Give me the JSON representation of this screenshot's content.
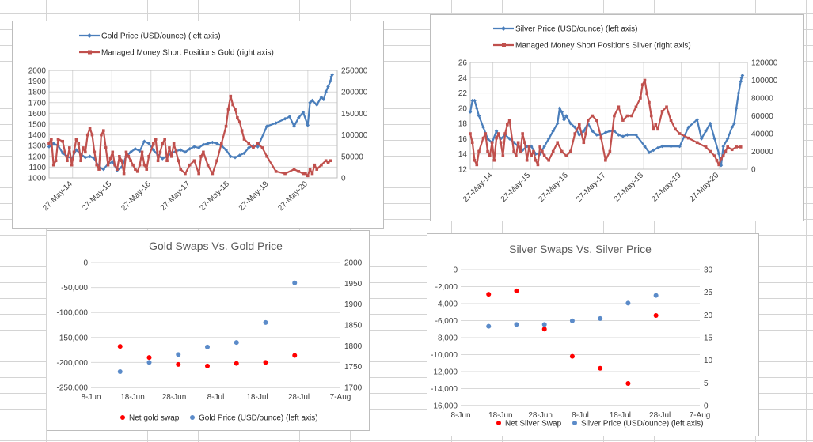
{
  "colors": {
    "blue": "#4a7ebb",
    "red": "#c0504d",
    "scatter_blue": "#5b8bc9",
    "scatter_red": "#ff0000"
  },
  "chart_data": [
    {
      "id": "gold-cot",
      "type": "line",
      "title": "",
      "legend": [
        "Gold Price (USD/ounce) (left axis)",
        "Managed Money Short Positions Gold (right axis)"
      ],
      "legend_position": "top",
      "grid": true,
      "x_ticks": [
        "27-May-14",
        "27-May-15",
        "27-May-16",
        "27-May-17",
        "27-May-18",
        "27-May-19",
        "27-May-20"
      ],
      "x_range": [
        2014.4,
        2020.75
      ],
      "ylim_left": [
        1000,
        2000
      ],
      "yticks_left": [
        1000,
        1100,
        1200,
        1300,
        1400,
        1500,
        1600,
        1700,
        1800,
        1900,
        2000
      ],
      "ylim_right": [
        0,
        250000
      ],
      "yticks_right": [
        0,
        50000,
        100000,
        150000,
        200000,
        250000
      ],
      "series": [
        {
          "name": "Gold Price (USD/ounce) (left axis)",
          "axis": "left",
          "marker": "diamond",
          "x": [
            2014.4,
            2014.5,
            2014.6,
            2014.7,
            2014.8,
            2014.9,
            2015.0,
            2015.1,
            2015.2,
            2015.3,
            2015.4,
            2015.5,
            2015.6,
            2015.7,
            2015.8,
            2015.9,
            2016.0,
            2016.1,
            2016.2,
            2016.3,
            2016.4,
            2016.5,
            2016.6,
            2016.7,
            2016.8,
            2016.9,
            2017.0,
            2017.1,
            2017.2,
            2017.3,
            2017.4,
            2017.5,
            2017.6,
            2017.7,
            2017.8,
            2017.9,
            2018.0,
            2018.1,
            2018.2,
            2018.3,
            2018.4,
            2018.5,
            2018.6,
            2018.7,
            2018.8,
            2018.9,
            2019.0,
            2019.2,
            2019.4,
            2019.6,
            2019.7,
            2019.8,
            2019.9,
            2020.0,
            2020.1,
            2020.15,
            2020.2,
            2020.3,
            2020.4,
            2020.45,
            2020.5,
            2020.55,
            2020.6,
            2020.62,
            2020.64
          ],
          "y": [
            1290,
            1320,
            1300,
            1230,
            1200,
            1180,
            1260,
            1220,
            1190,
            1200,
            1180,
            1100,
            1080,
            1130,
            1150,
            1070,
            1100,
            1200,
            1240,
            1270,
            1250,
            1340,
            1320,
            1260,
            1210,
            1180,
            1200,
            1230,
            1250,
            1260,
            1240,
            1270,
            1290,
            1280,
            1310,
            1320,
            1330,
            1320,
            1300,
            1260,
            1200,
            1190,
            1210,
            1230,
            1280,
            1300,
            1290,
            1480,
            1510,
            1550,
            1570,
            1480,
            1560,
            1610,
            1490,
            1700,
            1720,
            1680,
            1750,
            1730,
            1800,
            1850,
            1900,
            1940,
            1960
          ]
        },
        {
          "name": "Managed Money Short Positions Gold (right axis)",
          "axis": "right",
          "marker": "square",
          "x": [
            2014.4,
            2014.45,
            2014.5,
            2014.55,
            2014.6,
            2014.7,
            2014.75,
            2014.8,
            2014.85,
            2014.9,
            2014.95,
            2015.0,
            2015.05,
            2015.1,
            2015.15,
            2015.2,
            2015.25,
            2015.3,
            2015.35,
            2015.4,
            2015.45,
            2015.5,
            2015.55,
            2015.6,
            2015.65,
            2015.7,
            2015.75,
            2015.8,
            2015.85,
            2015.9,
            2015.95,
            2016.0,
            2016.05,
            2016.1,
            2016.15,
            2016.2,
            2016.25,
            2016.3,
            2016.35,
            2016.4,
            2016.45,
            2016.5,
            2016.55,
            2016.6,
            2016.7,
            2016.75,
            2016.8,
            2016.85,
            2016.9,
            2016.95,
            2017.0,
            2017.05,
            2017.1,
            2017.15,
            2017.2,
            2017.25,
            2017.3,
            2017.4,
            2017.5,
            2017.6,
            2017.7,
            2017.75,
            2017.8,
            2017.9,
            2018.0,
            2018.1,
            2018.2,
            2018.3,
            2018.35,
            2018.4,
            2018.45,
            2018.5,
            2018.55,
            2018.6,
            2018.65,
            2018.7,
            2018.8,
            2018.9,
            2019.0,
            2019.1,
            2019.2,
            2019.4,
            2019.6,
            2019.8,
            2019.9,
            2020.0,
            2020.05,
            2020.1,
            2020.15,
            2020.2,
            2020.25,
            2020.3,
            2020.4,
            2020.5,
            2020.55,
            2020.6
          ],
          "y": [
            80000,
            90000,
            30000,
            40000,
            90000,
            85000,
            60000,
            40000,
            70000,
            30000,
            60000,
            90000,
            80000,
            40000,
            70000,
            60000,
            100000,
            115000,
            100000,
            60000,
            30000,
            20000,
            100000,
            110000,
            70000,
            30000,
            45000,
            60000,
            30000,
            20000,
            50000,
            40000,
            10000,
            60000,
            50000,
            40000,
            30000,
            20000,
            15000,
            30000,
            60000,
            30000,
            20000,
            50000,
            80000,
            90000,
            40000,
            60000,
            80000,
            90000,
            40000,
            70000,
            50000,
            80000,
            60000,
            40000,
            20000,
            10000,
            30000,
            40000,
            10000,
            50000,
            60000,
            30000,
            10000,
            40000,
            80000,
            120000,
            160000,
            190000,
            170000,
            160000,
            140000,
            130000,
            110000,
            90000,
            80000,
            70000,
            80000,
            70000,
            50000,
            15000,
            10000,
            20000,
            15000,
            10000,
            10000,
            5000,
            20000,
            10000,
            30000,
            20000,
            30000,
            40000,
            35000,
            40000
          ]
        }
      ]
    },
    {
      "id": "silver-cot",
      "type": "line",
      "title": "",
      "legend": [
        "Silver Price (USD/ounce) (left axis)",
        "Managed Money Short Positions Silver (right axis)"
      ],
      "legend_position": "top",
      "grid": true,
      "x_ticks": [
        "27-May-14",
        "27-May-15",
        "27-May-16",
        "27-May-17",
        "27-May-18",
        "27-May-19",
        "27-May-20"
      ],
      "x_range": [
        2014.4,
        2020.75
      ],
      "ylim_left": [
        12,
        26
      ],
      "yticks_left": [
        12,
        14,
        16,
        18,
        20,
        22,
        24,
        26
      ],
      "ylim_right": [
        0,
        120000
      ],
      "yticks_right": [
        0,
        20000,
        40000,
        60000,
        80000,
        100000,
        120000
      ],
      "series": [
        {
          "name": "Silver Price (USD/ounce) (left axis)",
          "axis": "left",
          "marker": "diamond",
          "x": [
            2014.4,
            2014.45,
            2014.5,
            2014.55,
            2014.6,
            2014.7,
            2014.8,
            2014.9,
            2015.0,
            2015.1,
            2015.2,
            2015.3,
            2015.4,
            2015.5,
            2015.6,
            2015.7,
            2015.8,
            2015.9,
            2016.0,
            2016.1,
            2016.2,
            2016.3,
            2016.4,
            2016.45,
            2016.5,
            2016.55,
            2016.6,
            2016.7,
            2016.8,
            2016.9,
            2017.0,
            2017.1,
            2017.2,
            2017.3,
            2017.4,
            2017.5,
            2017.6,
            2017.7,
            2017.8,
            2017.9,
            2018.0,
            2018.2,
            2018.4,
            2018.5,
            2018.6,
            2018.7,
            2018.8,
            2019.0,
            2019.2,
            2019.4,
            2019.6,
            2019.7,
            2019.8,
            2019.9,
            2020.0,
            2020.1,
            2020.15,
            2020.2,
            2020.3,
            2020.4,
            2020.45,
            2020.5,
            2020.55,
            2020.6,
            2020.62,
            2020.64
          ],
          "y": [
            19.5,
            21.0,
            21.0,
            20.0,
            19.0,
            17.5,
            16.0,
            15.5,
            17.0,
            16.0,
            16.5,
            16.0,
            15.5,
            15.0,
            14.5,
            15.0,
            15.0,
            14.0,
            14.0,
            15.0,
            16.0,
            17.0,
            18.0,
            20.0,
            19.5,
            18.5,
            19.0,
            18.0,
            17.5,
            16.5,
            17.0,
            18.0,
            17.0,
            16.5,
            16.5,
            16.8,
            17.0,
            17.0,
            16.5,
            16.3,
            16.5,
            16.5,
            15.0,
            14.2,
            14.5,
            14.8,
            15.0,
            15.0,
            15.0,
            17.5,
            18.5,
            16.0,
            17.0,
            18.0,
            16.0,
            14.0,
            12.5,
            15.0,
            16.0,
            17.5,
            18.0,
            20.0,
            22.0,
            23.5,
            24.0,
            24.3
          ]
        },
        {
          "name": "Managed Money Short Positions Silver (right axis)",
          "axis": "right",
          "marker": "square",
          "x": [
            2014.4,
            2014.45,
            2014.5,
            2014.55,
            2014.6,
            2014.7,
            2014.75,
            2014.8,
            2014.85,
            2014.9,
            2014.95,
            2015.0,
            2015.05,
            2015.1,
            2015.15,
            2015.2,
            2015.25,
            2015.3,
            2015.4,
            2015.45,
            2015.5,
            2015.55,
            2015.6,
            2015.65,
            2015.7,
            2015.75,
            2015.8,
            2015.85,
            2015.9,
            2015.95,
            2016.0,
            2016.05,
            2016.1,
            2016.2,
            2016.3,
            2016.4,
            2016.5,
            2016.6,
            2016.7,
            2016.8,
            2016.9,
            2017.0,
            2017.05,
            2017.1,
            2017.2,
            2017.3,
            2017.4,
            2017.5,
            2017.6,
            2017.7,
            2017.8,
            2017.9,
            2018.0,
            2018.1,
            2018.2,
            2018.3,
            2018.35,
            2018.4,
            2018.45,
            2018.5,
            2018.55,
            2018.6,
            2018.65,
            2018.7,
            2018.8,
            2018.9,
            2019.0,
            2019.1,
            2019.2,
            2019.4,
            2019.6,
            2019.8,
            2019.9,
            2020.0,
            2020.05,
            2020.1,
            2020.15,
            2020.2,
            2020.25,
            2020.3,
            2020.4,
            2020.5,
            2020.6
          ],
          "y": [
            40000,
            30000,
            10000,
            5000,
            20000,
            35000,
            40000,
            20000,
            15000,
            30000,
            10000,
            35000,
            40000,
            30000,
            15000,
            40000,
            50000,
            55000,
            20000,
            15000,
            30000,
            20000,
            40000,
            30000,
            10000,
            25000,
            15000,
            20000,
            10000,
            5000,
            25000,
            20000,
            15000,
            10000,
            20000,
            30000,
            20000,
            15000,
            20000,
            40000,
            50000,
            30000,
            40000,
            55000,
            60000,
            55000,
            35000,
            10000,
            20000,
            60000,
            70000,
            55000,
            60000,
            60000,
            70000,
            80000,
            95000,
            100000,
            85000,
            75000,
            60000,
            45000,
            50000,
            45000,
            65000,
            70000,
            55000,
            45000,
            40000,
            35000,
            30000,
            25000,
            20000,
            15000,
            10000,
            5000,
            12000,
            15000,
            20000,
            25000,
            22000,
            25000,
            25000
          ]
        }
      ]
    },
    {
      "id": "gold-swaps",
      "type": "scatter",
      "title": "Gold Swaps Vs. Gold Price",
      "legend": [
        "Net gold swap",
        "Gold Price (USD/ounce) (left axis)"
      ],
      "legend_position": "bottom",
      "grid": true,
      "x_ticks": [
        "8-Jun",
        "18-Jun",
        "28-Jun",
        "8-Jul",
        "18-Jul",
        "28-Jul",
        "7-Aug"
      ],
      "x_range": [
        0,
        60
      ],
      "ylim_left": [
        -250000,
        0
      ],
      "yticks_left": [
        0,
        -50000,
        -100000,
        -150000,
        -200000,
        -250000
      ],
      "yticks_left_labels": [
        "0",
        "-50,000",
        "-100,000",
        "-150,000",
        "-200,000",
        "-250,000"
      ],
      "ylim_right": [
        1700,
        2000
      ],
      "yticks_right": [
        1700,
        1750,
        1800,
        1850,
        1900,
        1950,
        2000
      ],
      "series": [
        {
          "name": "Net gold swap",
          "axis": "left",
          "x": [
            7,
            14,
            21,
            28,
            35,
            42,
            49
          ],
          "y": [
            -168000,
            -190000,
            -204000,
            -207000,
            -202000,
            -200000,
            -186000
          ]
        },
        {
          "name": "Gold Price (USD/ounce) (left axis)",
          "axis": "right",
          "x": [
            7,
            14,
            21,
            28,
            35,
            42,
            49
          ],
          "y": [
            1738,
            1760,
            1779,
            1797,
            1808,
            1856,
            1951
          ]
        }
      ]
    },
    {
      "id": "silver-swaps",
      "type": "scatter",
      "title": "Silver Swaps Vs. Silver Price",
      "legend": [
        "Net Silver Swap",
        "Silver Price (USD/ounce) (left axis)"
      ],
      "legend_position": "bottom",
      "grid": true,
      "x_ticks": [
        "8-Jun",
        "18-Jun",
        "28-Jun",
        "8-Jul",
        "18-Jul",
        "28-Jul",
        "7-Aug"
      ],
      "x_range": [
        0,
        60
      ],
      "ylim_left": [
        -16000,
        0
      ],
      "yticks_left": [
        0,
        -2000,
        -4000,
        -6000,
        -8000,
        -10000,
        -12000,
        -14000,
        -16000
      ],
      "yticks_left_labels": [
        "0",
        "-2,000",
        "-4,000",
        "-6,000",
        "-8,000",
        "-10,000",
        "-12,000",
        "-14,000",
        "-16,000"
      ],
      "ylim_right": [
        0,
        30
      ],
      "yticks_right": [
        0,
        5,
        10,
        15,
        20,
        25,
        30
      ],
      "series": [
        {
          "name": "Net Silver Swap",
          "axis": "left",
          "x": [
            7,
            14,
            21,
            28,
            35,
            42,
            49
          ],
          "y": [
            -2900,
            -2500,
            -7000,
            -10200,
            -11600,
            -13400,
            -5400
          ]
        },
        {
          "name": "Silver Price (USD/ounce) (left axis)",
          "axis": "right",
          "x": [
            7,
            14,
            21,
            28,
            35,
            42,
            49
          ],
          "y": [
            17.5,
            17.9,
            17.9,
            18.7,
            19.2,
            22.6,
            24.3
          ]
        }
      ]
    }
  ]
}
